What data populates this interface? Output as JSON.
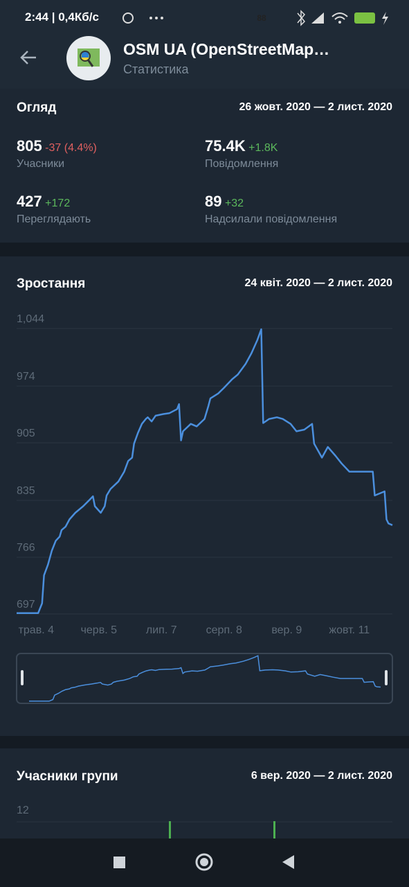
{
  "status_bar": {
    "time": "2:44 | 0,4Кб/с",
    "battery": "88"
  },
  "header": {
    "title": "OSM UA (OpenStreetMap…",
    "subtitle": "Статистика"
  },
  "overview": {
    "title": "Огляд",
    "period": "26 жовт. 2020 — 2 лист. 2020",
    "stats": [
      {
        "value": "805",
        "change": "-37 (4.4%)",
        "label": "Учасники"
      },
      {
        "value": "75.4K",
        "change": "+1.8K",
        "label": "Повідомлення"
      },
      {
        "value": "427",
        "change": "+172",
        "label": "Переглядають"
      },
      {
        "value": "89",
        "change": "+32",
        "label": "Надсилали повідомлення"
      }
    ]
  },
  "growth": {
    "type": "line",
    "title": "Зростання",
    "period": "24 квіт. 2020 — 2 лист. 2020",
    "color": "#4b8fdd",
    "grid": true,
    "x": [
      0,
      11,
      13,
      14,
      16,
      18,
      20,
      22,
      23,
      25,
      27,
      30,
      34,
      37,
      39,
      40,
      43,
      45,
      46,
      48,
      52,
      55,
      57,
      59,
      60,
      62,
      64,
      66,
      67,
      69,
      71,
      75,
      78,
      82,
      83,
      84,
      85,
      89,
      92,
      96,
      98,
      99,
      103,
      106,
      110,
      113,
      117,
      120,
      123,
      125,
      126,
      129,
      133,
      136,
      140,
      143,
      147,
      151,
      152,
      156,
      159,
      163,
      166,
      170,
      182,
      183,
      186,
      188,
      189,
      190,
      192
    ],
    "values": [
      698,
      698,
      710,
      744,
      757,
      774,
      786,
      791,
      799,
      803,
      812,
      820,
      828,
      835,
      840,
      828,
      820,
      828,
      841,
      849,
      858,
      870,
      883,
      887,
      904,
      917,
      928,
      934,
      936,
      931,
      938,
      940,
      941,
      946,
      952,
      908,
      919,
      928,
      925,
      934,
      950,
      959,
      965,
      972,
      982,
      988,
      1001,
      1014,
      1030,
      1043,
      929,
      934,
      936,
      934,
      928,
      919,
      921,
      928,
      904,
      887,
      900,
      889,
      880,
      870,
      870,
      841,
      844,
      846,
      812,
      807,
      805
    ],
    "xlim": [
      0,
      192
    ],
    "ylim": [
      697,
      1044
    ],
    "yticks": [
      697,
      766,
      835,
      905,
      974,
      {
        "value": 1044,
        "label": "1,044"
      }
    ],
    "xticks": [
      {
        "value": 10,
        "label": "трав. 4"
      },
      {
        "value": 42,
        "label": "черв. 5"
      },
      {
        "value": 74,
        "label": "лип. 7"
      },
      {
        "value": 106,
        "label": "серп. 8"
      },
      {
        "value": 138,
        "label": "вер. 9"
      },
      {
        "value": 170,
        "label": "жовт. 11"
      }
    ]
  },
  "members": {
    "title": "Учасники групи",
    "period": "6 вер. 2020 — 2 лист. 2020",
    "yticks": [
      12
    ]
  }
}
